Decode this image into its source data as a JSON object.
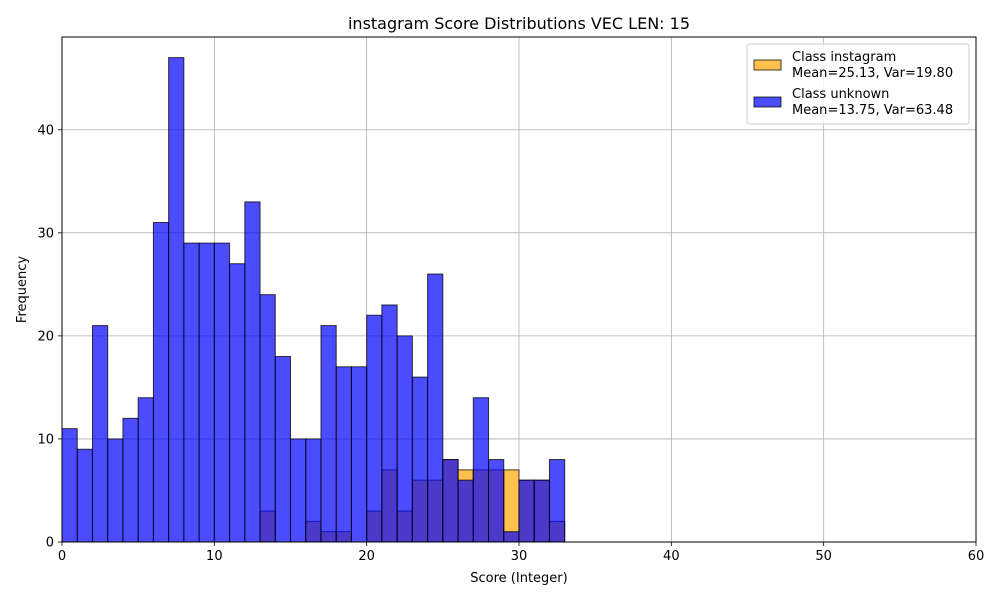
{
  "chart_data": {
    "type": "bar",
    "title": "instagram Score Distributions VEC LEN: 15",
    "xlabel": "Score (Integer)",
    "ylabel": "Frequency",
    "xlim": [
      0,
      60
    ],
    "ylim": [
      0,
      49
    ],
    "xticks": [
      0,
      10,
      20,
      30,
      40,
      50,
      60
    ],
    "yticks": [
      0,
      10,
      20,
      30,
      40
    ],
    "grid": true,
    "legend_position": "top-right",
    "bin_width": 1,
    "series": [
      {
        "name": "Class instagram",
        "stats": "Mean=25.13, Var=19.80",
        "color": "#FFA500",
        "x": [
          13,
          16,
          17,
          18,
          20,
          21,
          22,
          23,
          24,
          25,
          26,
          27,
          28,
          29,
          30,
          31,
          32
        ],
        "values": [
          3,
          2,
          1,
          1,
          3,
          7,
          3,
          6,
          6,
          8,
          7,
          7,
          7,
          7,
          6,
          6,
          2
        ]
      },
      {
        "name": "Class unknown",
        "stats": "Mean=13.75, Var=63.48",
        "color": "#0000FF",
        "x": [
          0,
          1,
          2,
          3,
          4,
          5,
          6,
          7,
          8,
          9,
          10,
          11,
          12,
          13,
          14,
          15,
          16,
          17,
          18,
          19,
          20,
          21,
          22,
          23,
          24,
          25,
          26,
          27,
          28,
          29,
          30,
          31,
          32
        ],
        "values": [
          11,
          9,
          21,
          10,
          12,
          14,
          31,
          47,
          29,
          29,
          29,
          27,
          33,
          24,
          18,
          10,
          10,
          21,
          17,
          17,
          22,
          23,
          20,
          16,
          26,
          8,
          6,
          14,
          8,
          1,
          6,
          6,
          8
        ]
      }
    ]
  }
}
